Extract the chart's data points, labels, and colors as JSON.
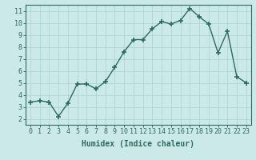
{
  "x": [
    0,
    1,
    2,
    3,
    4,
    5,
    6,
    7,
    8,
    9,
    10,
    11,
    12,
    13,
    14,
    15,
    16,
    17,
    18,
    19,
    20,
    21,
    22,
    23
  ],
  "y": [
    3.4,
    3.5,
    3.4,
    2.2,
    3.3,
    4.9,
    4.9,
    4.5,
    5.1,
    6.3,
    7.6,
    8.6,
    8.6,
    9.5,
    10.1,
    9.9,
    10.2,
    11.2,
    10.5,
    9.9,
    7.5,
    9.3,
    5.5,
    5.0
  ],
  "line_color": "#2d6b5e",
  "marker": "+",
  "marker_size": 4,
  "bg_color": "#cce9e9",
  "grid_color": "#b0d4d4",
  "xlabel": "Humidex (Indice chaleur)",
  "xlim": [
    -0.5,
    23.5
  ],
  "ylim": [
    1.5,
    11.5
  ],
  "yticks": [
    2,
    3,
    4,
    5,
    6,
    7,
    8,
    9,
    10,
    11
  ],
  "xticks": [
    0,
    1,
    2,
    3,
    4,
    5,
    6,
    7,
    8,
    9,
    10,
    11,
    12,
    13,
    14,
    15,
    16,
    17,
    18,
    19,
    20,
    21,
    22,
    23
  ],
  "tick_label_fontsize": 6,
  "xlabel_fontsize": 7,
  "line_width": 1.0
}
